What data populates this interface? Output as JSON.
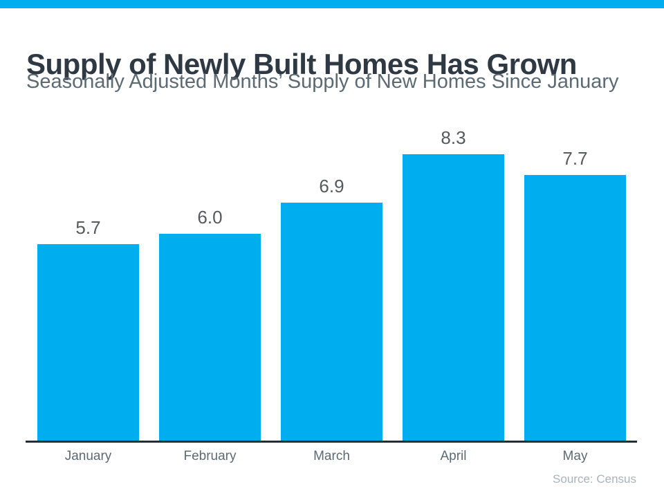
{
  "header": {
    "title": "Supply of Newly Built Homes Has Grown",
    "subtitle": "Seasonally Adjusted Months’ Supply of New Homes Since January"
  },
  "footer": {
    "source": "Source: Census"
  },
  "colors": {
    "accent": "#00AEEF",
    "bar": "#00AEEF",
    "title_text": "#2E3943",
    "secondary_text": "#5C6A74",
    "value_label_text": "#58595B",
    "axis_line": "#222D36",
    "source_text": "#A9B2BA"
  },
  "chart_data": {
    "type": "bar",
    "title": "Supply of Newly Built Homes Has Grown",
    "subtitle": "Seasonally Adjusted Months’ Supply of New Homes Since January",
    "categories": [
      "January",
      "February",
      "March",
      "April",
      "May"
    ],
    "values": [
      5.7,
      6.0,
      6.9,
      8.3,
      7.7
    ],
    "data_labels": [
      "5.7",
      "6.0",
      "6.9",
      "8.3",
      "7.7"
    ],
    "xlabel": "",
    "ylabel": "",
    "ylim": [
      0,
      8.8
    ],
    "grid": false,
    "legend": "none",
    "bar_color": "#00AEEF",
    "source": "Source: Census"
  }
}
